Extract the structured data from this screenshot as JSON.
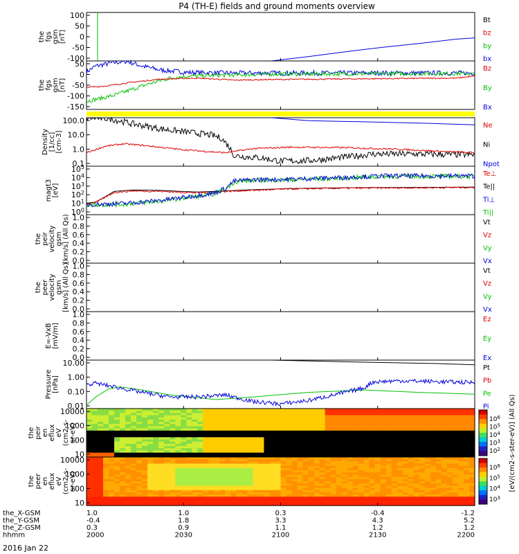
{
  "title": "P4 (TH-E) fields and ground moments overview",
  "date_label": "2016 Jan 22",
  "ephemeris": {
    "row_labels": [
      "the_X-GSM",
      "the_Y-GSM",
      "the_Z-GSM",
      "hhmm"
    ],
    "columns": [
      [
        "1.0",
        "-0.4",
        "0.3",
        "2000"
      ],
      [
        "1.0",
        "1.8",
        "0.9",
        "2030"
      ],
      [
        "0.3",
        "3.3",
        "1.1",
        "2100"
      ],
      [
        "-0.4",
        "4.3",
        "1.2",
        "2130"
      ],
      [
        "-1.2",
        "5.2",
        "1.2",
        "2200"
      ]
    ]
  },
  "colorbar": {
    "label": "[eV/(cm2-s-ster-eV)] (All Qs)",
    "ticks": [
      "10^3",
      "10^4",
      "10^5",
      "10^6"
    ],
    "ticks_panel9": [
      "10^2",
      "10^3",
      "10^4",
      "10^5",
      "10^6"
    ]
  },
  "colors": {
    "black": "#000000",
    "red": "#dd0000",
    "green": "#00c000",
    "blue": "#0000dd",
    "yellow": "#ffff00"
  },
  "chart_data": [
    {
      "type": "line",
      "ylabel": [
        "the",
        "fgs",
        "gsm",
        "[nT]"
      ],
      "yticks": [
        "100",
        "50",
        "0",
        "-50",
        "-100"
      ],
      "ylim": [
        -100,
        100
      ],
      "legend": [
        "Bt",
        "bz",
        "by",
        "bx"
      ],
      "series": [
        {
          "name": "by",
          "color": "green",
          "points": [
            [
              6,
              100
            ],
            [
              6,
              -100
            ]
          ]
        },
        {
          "name": "bx",
          "color": "blue",
          "points": [
            [
              100,
              -100
            ],
            [
              120,
              -82
            ],
            [
              140,
              -62
            ],
            [
              160,
              -44
            ],
            [
              180,
              -28
            ],
            [
              200,
              -10
            ],
            [
              210,
              -5
            ]
          ]
        }
      ]
    },
    {
      "type": "line",
      "ylabel": [
        "the",
        "fgs",
        "gsm",
        "[nT]"
      ],
      "yticks": [
        "50",
        "0",
        "-50",
        "-100",
        "-150"
      ],
      "ylim": [
        -170,
        70
      ],
      "legend": [
        "Bz",
        "By",
        "Bx"
      ],
      "series": [
        {
          "name": "Bx",
          "color": "blue",
          "noise": 12,
          "points": [
            [
              0,
              15
            ],
            [
              5,
              45
            ],
            [
              15,
              62
            ],
            [
              22,
              68
            ],
            [
              30,
              45
            ],
            [
              40,
              25
            ],
            [
              55,
              13
            ],
            [
              80,
              10
            ],
            [
              210,
              10
            ]
          ]
        },
        {
          "name": "By",
          "color": "green",
          "noise": 10,
          "points": [
            [
              0,
              -130
            ],
            [
              5,
              -120
            ],
            [
              15,
              -100
            ],
            [
              25,
              -70
            ],
            [
              35,
              -40
            ],
            [
              45,
              -15
            ],
            [
              55,
              -5
            ],
            [
              100,
              5
            ],
            [
              200,
              8
            ],
            [
              210,
              5
            ]
          ]
        },
        {
          "name": "Bz",
          "color": "red",
          "noise": 3,
          "points": [
            [
              0,
              -60
            ],
            [
              10,
              -55
            ],
            [
              25,
              -35
            ],
            [
              40,
              -20
            ],
            [
              60,
              -15
            ],
            [
              80,
              -25
            ],
            [
              100,
              -22
            ],
            [
              200,
              -15
            ],
            [
              210,
              -5
            ]
          ]
        }
      ],
      "bar": {
        "color": "yellow"
      }
    },
    {
      "type": "line",
      "scale": "log",
      "ylabel": [
        "Density",
        "[1/cc]",
        "[cm-3]"
      ],
      "yticks": [
        "100.0",
        "10.0",
        "1.0",
        "0.1"
      ],
      "ylim": [
        0.05,
        200
      ],
      "legend": [
        "Ne",
        "Ni",
        "Npot"
      ],
      "series": [
        {
          "name": "Npot",
          "color": "blue",
          "points": [
            [
              100,
              200
            ],
            [
              120,
              120
            ],
            [
              150,
              100
            ],
            [
              180,
              80
            ],
            [
              210,
              60
            ]
          ]
        },
        {
          "name": "Ni",
          "color": "black",
          "noise": 0.08,
          "points": [
            [
              0,
              200
            ],
            [
              12,
              180
            ],
            [
              25,
              70
            ],
            [
              40,
              30
            ],
            [
              50,
              20
            ],
            [
              60,
              14
            ],
            [
              68,
              10
            ],
            [
              73,
              6
            ],
            [
              77,
              1.5
            ],
            [
              80,
              0.3
            ],
            [
              95,
              0.2
            ],
            [
              105,
              0.12
            ],
            [
              120,
              0.13
            ],
            [
              135,
              0.2
            ],
            [
              155,
              0.4
            ],
            [
              180,
              0.4
            ],
            [
              210,
              0.35
            ]
          ]
        },
        {
          "name": "Ne",
          "color": "red",
          "noise": 0.02,
          "points": [
            [
              0,
              0.5
            ],
            [
              10,
              1.5
            ],
            [
              20,
              2.3
            ],
            [
              30,
              1.8
            ],
            [
              50,
              0.9
            ],
            [
              60,
              0.7
            ],
            [
              75,
              0.5
            ],
            [
              90,
              1.0
            ],
            [
              110,
              1.3
            ],
            [
              140,
              1.2
            ],
            [
              170,
              0.9
            ],
            [
              195,
              0.6
            ],
            [
              210,
              0.5
            ]
          ]
        }
      ]
    },
    {
      "type": "line",
      "scale": "log",
      "ylabel": [
        "magt3",
        "[eV]"
      ],
      "yticks": [
        "10^5",
        "10^4",
        "10^3",
        "10^2",
        "10^1",
        "10^0"
      ],
      "ylim": [
        1,
        100000
      ],
      "legend": [
        "Te⊥",
        "Te||",
        "Ti⊥",
        "Ti||"
      ],
      "series": [
        {
          "name": "Te||",
          "color": "black",
          "points": [
            [
              0,
              15
            ],
            [
              5,
              20
            ],
            [
              15,
              250
            ],
            [
              25,
              350
            ],
            [
              40,
              320
            ],
            [
              50,
              260
            ],
            [
              60,
              220
            ],
            [
              75,
              280
            ],
            [
              85,
              350
            ],
            [
              110,
              500
            ],
            [
              140,
              600
            ],
            [
              180,
              650
            ],
            [
              210,
              700
            ]
          ]
        },
        {
          "name": "Te⊥",
          "color": "red",
          "noise": 0.03,
          "points": [
            [
              0,
              12
            ],
            [
              5,
              18
            ],
            [
              15,
              200
            ],
            [
              25,
              280
            ],
            [
              40,
              260
            ],
            [
              50,
              210
            ],
            [
              60,
              180
            ],
            [
              75,
              250
            ],
            [
              85,
              300
            ],
            [
              110,
              450
            ],
            [
              140,
              550
            ],
            [
              180,
              600
            ],
            [
              210,
              650
            ]
          ]
        },
        {
          "name": "Ti||",
          "color": "green",
          "noise": 0.08,
          "points": [
            [
              0,
              10
            ],
            [
              20,
              12
            ],
            [
              40,
              25
            ],
            [
              55,
              60
            ],
            [
              68,
              130
            ],
            [
              75,
              400
            ],
            [
              80,
              2500
            ],
            [
              90,
              3500
            ],
            [
              110,
              4000
            ],
            [
              140,
              6000
            ],
            [
              160,
              9000
            ],
            [
              210,
              9000
            ]
          ]
        },
        {
          "name": "Ti⊥",
          "color": "blue",
          "noise": 0.08,
          "points": [
            [
              0,
              11
            ],
            [
              20,
              14
            ],
            [
              40,
              30
            ],
            [
              55,
              70
            ],
            [
              68,
              150
            ],
            [
              75,
              500
            ],
            [
              80,
              3000
            ],
            [
              90,
              4000
            ],
            [
              110,
              4500
            ],
            [
              140,
              7000
            ],
            [
              160,
              10000
            ],
            [
              210,
              10000
            ]
          ]
        }
      ]
    },
    {
      "type": "line",
      "ylabel": [
        "the",
        "peir",
        "velocity",
        "gsm",
        "[km/s] (All Qs)"
      ],
      "yticks": [
        "1.0",
        "0.8",
        "0.6",
        "0.4",
        "0.2",
        "0.0"
      ],
      "ylim": [
        0,
        1
      ],
      "legend": [
        "Vt",
        "Vz",
        "Vy",
        "Vx"
      ],
      "series": []
    },
    {
      "type": "line",
      "ylabel": [
        "the",
        "peer",
        "velocity",
        "gsm",
        "[km/s] (All Qs)"
      ],
      "yticks": [
        "1.0",
        "0.8",
        "0.6",
        "0.4",
        "0.2",
        "0.0"
      ],
      "ylim": [
        0,
        1
      ],
      "legend": [
        "Vt",
        "Vz",
        "Vy",
        "Vx"
      ],
      "series": []
    },
    {
      "type": "line",
      "ylabel": [
        "E=-VxB",
        "[mV/m]"
      ],
      "yticks": [
        "1.0",
        "0.8",
        "0.6",
        "0.4",
        "0.2",
        "0.0"
      ],
      "ylim": [
        0,
        1
      ],
      "legend": [
        "Ez",
        "Ey",
        "Ex"
      ],
      "series": []
    },
    {
      "type": "line",
      "scale": "log",
      "ylabel": [
        "Pressure",
        "[nPa]"
      ],
      "yticks": [
        "10.00",
        "1.00",
        "0.10",
        "0.01"
      ],
      "ylim": [
        0.002,
        30
      ],
      "legend": [
        "Pt",
        "Pb",
        "Pe",
        "Pi"
      ],
      "series": [
        {
          "name": "Pt",
          "color": "black",
          "points": [
            [
              100,
              30
            ],
            [
              150,
              20
            ],
            [
              190,
              15
            ],
            [
              210,
              12
            ]
          ]
        },
        {
          "name": "Pe",
          "color": "green",
          "points": [
            [
              0,
              0.004
            ],
            [
              5,
              0.02
            ],
            [
              12,
              0.1
            ],
            [
              18,
              0.15
            ],
            [
              30,
              0.08
            ],
            [
              45,
              0.03
            ],
            [
              70,
              0.012
            ],
            [
              90,
              0.02
            ],
            [
              120,
              0.05
            ],
            [
              150,
              0.08
            ],
            [
              180,
              0.05
            ],
            [
              210,
              0.035
            ]
          ]
        },
        {
          "name": "Pi",
          "color": "blue",
          "noise": 0.06,
          "points": [
            [
              0,
              0.25
            ],
            [
              5,
              0.3
            ],
            [
              15,
              0.15
            ],
            [
              30,
              0.05
            ],
            [
              45,
              0.02
            ],
            [
              60,
              0.02
            ],
            [
              75,
              0.03
            ],
            [
              90,
              0.008
            ],
            [
              105,
              0.005
            ],
            [
              120,
              0.01
            ],
            [
              140,
              0.05
            ],
            [
              150,
              0.12
            ],
            [
              155,
              0.4
            ],
            [
              170,
              0.5
            ],
            [
              210,
              0.35
            ]
          ]
        }
      ]
    },
    {
      "type": "heatmap",
      "ylabel": [
        "the",
        "peir",
        "en",
        "eflux",
        "eV",
        "(cm2-s-",
        "sr-eV)"
      ],
      "yticks": [
        "10000",
        "1000",
        "100",
        "10"
      ],
      "ylim": [
        5,
        25000
      ]
    },
    {
      "type": "heatmap",
      "ylabel": [
        "the",
        "peer",
        "en",
        "eflux",
        "eV",
        "(cm2-s-",
        "sr-eV)"
      ],
      "yticks": [
        "10000",
        "1000",
        "100",
        "10"
      ],
      "ylim": [
        5,
        25000
      ]
    }
  ]
}
